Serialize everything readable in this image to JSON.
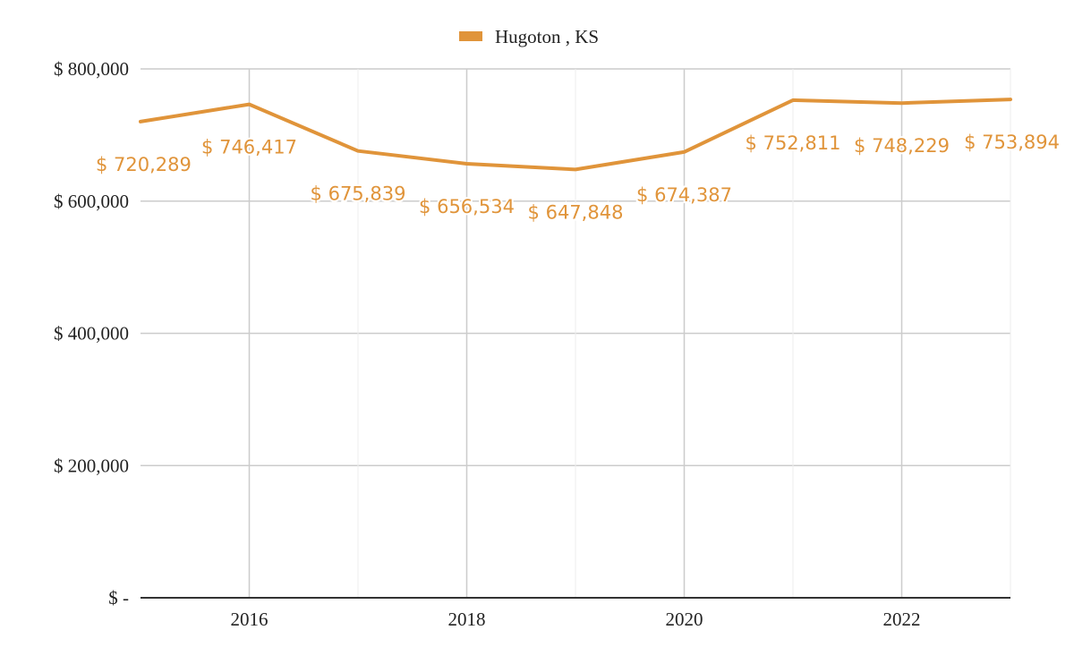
{
  "chart_data": {
    "type": "line",
    "title": "",
    "xlabel": "",
    "ylabel": "",
    "x": [
      2015,
      2016,
      2017,
      2018,
      2019,
      2020,
      2021,
      2022,
      2023
    ],
    "series": [
      {
        "name": "Hugoton , KS",
        "color": "#e0943a",
        "values": [
          720289,
          746417,
          675839,
          656534,
          647848,
          674387,
          752811,
          748229,
          753894
        ],
        "labels": [
          "$ 720,289",
          "$ 746,417",
          "$ 675,839",
          "$ 656,534",
          "$ 647,848",
          "$ 674,387",
          "$ 752,811",
          "$ 748,229",
          "$ 753,894"
        ]
      }
    ],
    "ylim": [
      0,
      800000
    ],
    "xlim": [
      2015,
      2023
    ],
    "y_ticks": [
      0,
      200000,
      400000,
      600000,
      800000
    ],
    "y_tick_labels": [
      "$ -",
      "$ 200,000",
      "$ 400,000",
      "$ 600,000",
      "$ 800,000"
    ],
    "x_ticks": [
      2016,
      2018,
      2020,
      2022
    ],
    "x_tick_labels": [
      "2016",
      "2018",
      "2020",
      "2022"
    ],
    "grid": true,
    "legend_position": "top-center"
  }
}
